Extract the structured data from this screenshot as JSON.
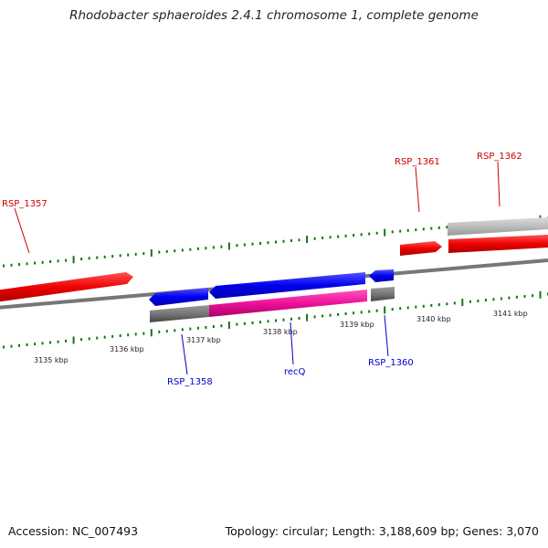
{
  "title": "Rhodobacter sphaeroides 2.4.1 chromosome 1, complete genome",
  "footer": {
    "accession": "Accession: NC_007493",
    "summary": "Topology: circular; Length: 3,188,609 bp; Genes: 3,070"
  },
  "colors": {
    "forward_gene": "#ee0000",
    "reverse_gene": "#0000ee",
    "gene_highlight": "#ee1199",
    "gene_gray": "#777777",
    "gene_light_gray": "#bbbbbb",
    "backbone": "#777777",
    "tick": "#117711",
    "forward_label": "#cc0000",
    "reverse_label": "#0000cc"
  },
  "scale": {
    "unit": "kbp",
    "labels": [
      "3135 kbp",
      "3136 kbp",
      "3137 kbp",
      "3138 kbp",
      "3139 kbp",
      "3140 kbp",
      "3141 kbp"
    ]
  },
  "genes": [
    {
      "name": "RSP_1357",
      "strand": "+"
    },
    {
      "name": "RSP_1358",
      "strand": "-"
    },
    {
      "name": "recQ",
      "strand": "-"
    },
    {
      "name": "RSP_1360",
      "strand": "-"
    },
    {
      "name": "RSP_1361",
      "strand": "+"
    },
    {
      "name": "RSP_1362",
      "strand": "+"
    }
  ]
}
